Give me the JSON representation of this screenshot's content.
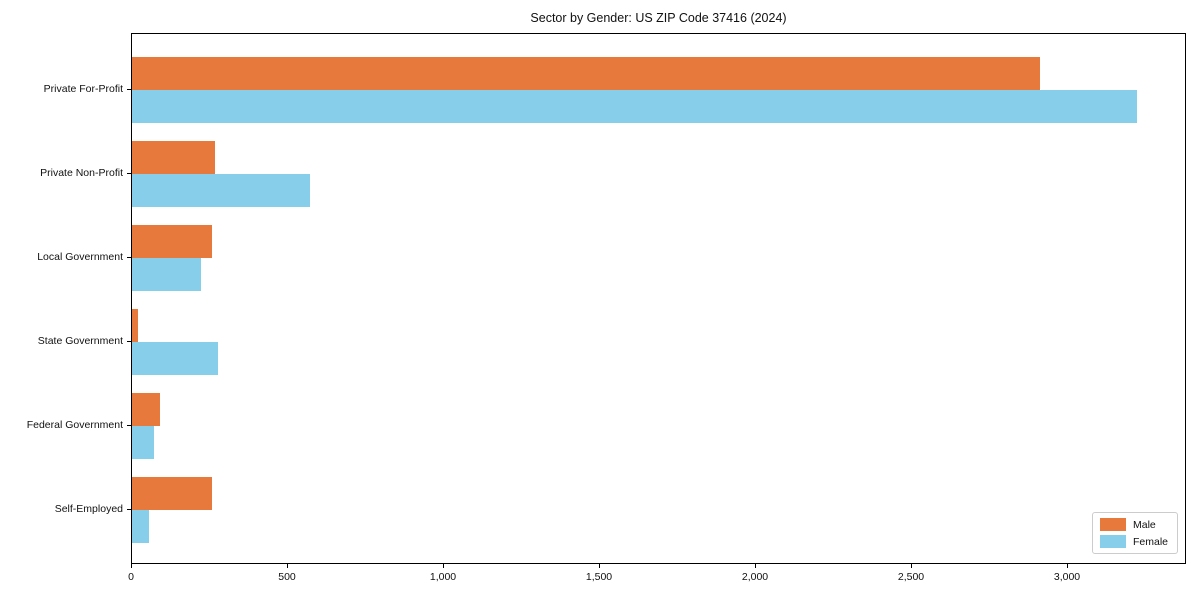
{
  "chart_data": {
    "type": "bar",
    "orientation": "horizontal",
    "title": "Sector by Gender: US ZIP Code 37416 (2024)",
    "categories": [
      "Private For-Profit",
      "Private Non-Profit",
      "Local Government",
      "State Government",
      "Federal Government",
      "Self-Employed"
    ],
    "series": [
      {
        "name": "Male",
        "color": "#E8793D",
        "values": [
          2910,
          265,
          255,
          20,
          90,
          255
        ]
      },
      {
        "name": "Female",
        "color": "#87CEEB",
        "values": [
          3220,
          570,
          220,
          275,
          70,
          55
        ]
      }
    ],
    "xlabel": "",
    "ylabel": "",
    "xlim": [
      0,
      3380
    ],
    "xticks": [
      0,
      500,
      1000,
      1500,
      2000,
      2500,
      3000
    ],
    "xtick_labels": [
      "0",
      "500",
      "1,000",
      "1,500",
      "2,000",
      "2,500",
      "3,000"
    ],
    "grid": false,
    "legend_position": "lower right"
  }
}
